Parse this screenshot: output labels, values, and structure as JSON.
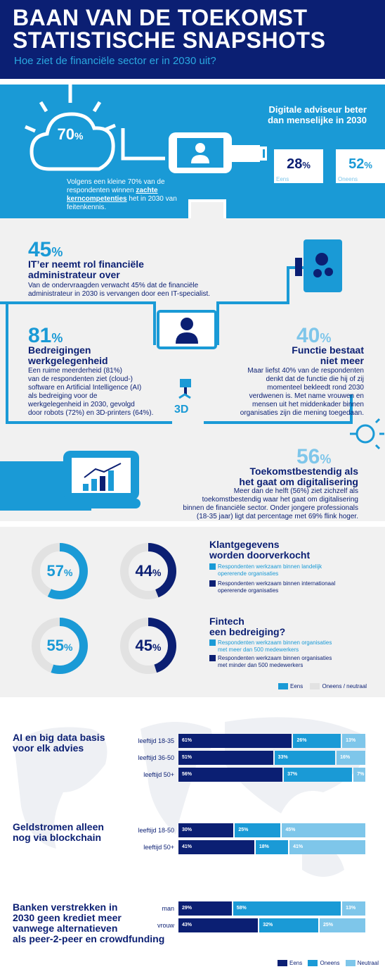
{
  "header": {
    "title_line1": "BAAN VAN DE TOEKOMST",
    "title_line2": "STATISTISCHE SNAPSHOTS",
    "subtitle": "Hoe ziet de financiële sector er in 2030 uit?"
  },
  "section1": {
    "cloud_value": "70",
    "cloud_text_pre": "Volgens een kleine 70% van de respondenten winnen ",
    "cloud_text_bold": "zachte kerncompetenties",
    "cloud_text_post": " het in 2030 van feitenkennis.",
    "advisor_title_1": "Digitale adviseur beter",
    "advisor_title_2": "dan menselijke in 2030",
    "agree_value": "28",
    "agree_label": "Eens",
    "disagree_value": "52",
    "disagree_label": "Oneens"
  },
  "section2": {
    "it_value": "45",
    "it_title_1": "IT’er neemt rol financiële",
    "it_title_2": "administrateur over",
    "it_text_1": "Van de ondervraagden verwacht 45% dat de financiële",
    "it_text_2": "administrateur in 2030 is vervangen door een IT-specialist.",
    "threat_value": "81",
    "threat_title_1": "Bedreigingen",
    "threat_title_2": "werkgelegenheid",
    "threat_text": [
      "Een ruime meerderheid (81%)",
      "van de respondenten ziet (cloud-)",
      "software en Artificial Intelligence (AI)",
      "als bedreiging voor de",
      "werkgelegenheid in 2030, gevolgd",
      "door robots (72%) en 3D-printers (64%)."
    ],
    "func_value": "40",
    "func_title_1": "Functie bestaat",
    "func_title_2": "niet meer",
    "func_text": [
      "Maar liefst 40% van de respondenten",
      "denkt dat de functie die hij of zij",
      "momenteel bekleedt rond 2030",
      "verdwenen is. Met name vrouwen en",
      "mensen uit het middenkader binnen",
      "organisaties zijn die mening toegedaan."
    ],
    "printer_label": "3D",
    "future_value": "56",
    "future_title_1": "Toekomstbestendig als",
    "future_title_2": "het gaat om digitalisering",
    "future_text": [
      "Meer dan de helft (56%) ziet zichzelf als",
      "toekomstbestendig waar het gaat om digitalisering",
      "binnen de financiële sector. Onder jongere professionals",
      "(18-35 jaar) ligt dat percentage met 69% flink hoger."
    ]
  },
  "section3": {
    "q1_title_1": "Klantgegevens",
    "q1_title_2": "worden doorverkocht",
    "q1_legend_a": [
      "Respondenten werkzaam binnen landelijk",
      "opererende organisaties"
    ],
    "q1_legend_b": [
      "Respondenten werkzaam binnen internationaal",
      "opererende organisaties"
    ],
    "q2_title_1": "Fintech",
    "q2_title_2": "een bedreiging?",
    "q2_legend_a": [
      "Respondenten werkzaam binnen organisaties",
      "met meer dan 500 medewerkers"
    ],
    "q2_legend_b": [
      "Respondenten werkzaam binnen organisaties",
      "met minder dan 500 medewerkers"
    ],
    "legend_agree": "Eens",
    "legend_other": "Oneens / neutraal",
    "colors": {
      "light": "#1a9ad6",
      "dark": "#0b1f73",
      "track": "#e2e2e2"
    }
  },
  "section4": {
    "legend": [
      "Eens",
      "Oneens",
      "Neutraal"
    ],
    "colors": [
      "#0b1f73",
      "#1a9ad6",
      "#7ec6ea"
    ]
  },
  "chart_data": [
    {
      "type": "pie",
      "title": "Klantgegevens worden doorverkocht",
      "series": [
        {
          "name": "Respondenten werkzaam binnen landelijk opererende organisaties",
          "values": [
            57,
            43
          ]
        },
        {
          "name": "Respondenten werkzaam binnen internationaal opererende organisaties",
          "values": [
            44,
            56
          ]
        }
      ],
      "categories": [
        "Eens",
        "Oneens / neutraal"
      ]
    },
    {
      "type": "pie",
      "title": "Fintech een bedreiging?",
      "series": [
        {
          "name": "Respondenten werkzaam binnen organisaties met meer dan 500 medewerkers",
          "values": [
            55,
            45
          ]
        },
        {
          "name": "Respondenten werkzaam binnen organisaties met minder dan 500 medewerkers",
          "values": [
            45,
            55
          ]
        }
      ],
      "categories": [
        "Eens",
        "Oneens / neutraal"
      ]
    },
    {
      "type": "bar",
      "title": "AI en big data basis voor elk advies",
      "categories": [
        "leeftijd 18-35",
        "leeftijd 36-50",
        "leeftijd 50+"
      ],
      "series": [
        {
          "name": "Eens",
          "values": [
            61,
            51,
            56
          ]
        },
        {
          "name": "Oneens",
          "values": [
            26,
            33,
            37
          ]
        },
        {
          "name": "Neutraal",
          "values": [
            13,
            16,
            7
          ]
        }
      ]
    },
    {
      "type": "bar",
      "title": "Geldstromen alleen nog via blockchain",
      "categories": [
        "leeftijd 18-50",
        "leeftijd 50+"
      ],
      "series": [
        {
          "name": "Eens",
          "values": [
            30,
            41
          ]
        },
        {
          "name": "Oneens",
          "values": [
            25,
            18
          ]
        },
        {
          "name": "Neutraal",
          "values": [
            45,
            41
          ]
        }
      ]
    },
    {
      "type": "bar",
      "title": "Banken verstrekken in 2030 geen krediet meer vanwege alternatieven als peer-2-peer en crowdfunding",
      "categories": [
        "man",
        "vrouw"
      ],
      "series": [
        {
          "name": "Eens",
          "values": [
            29,
            43
          ]
        },
        {
          "name": "Oneens",
          "values": [
            58,
            32
          ]
        },
        {
          "name": "Neutraal",
          "values": [
            13,
            25
          ]
        }
      ]
    }
  ]
}
